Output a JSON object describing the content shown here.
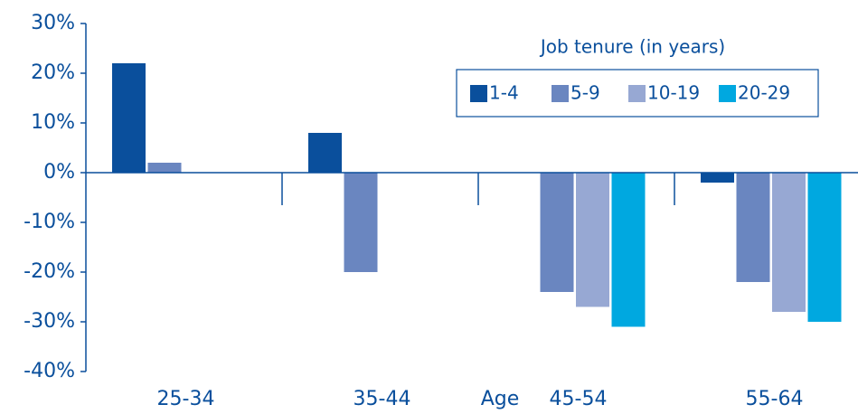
{
  "chart_data": {
    "type": "bar",
    "x_label": "Age",
    "categories": [
      "25-34",
      "35-44",
      "45-54",
      "55-64"
    ],
    "legend_title": "Job tenure (in years)",
    "legend_position": "upper right",
    "series": [
      {
        "name": "1-4",
        "color": "#0a4f9c",
        "values": [
          22,
          8,
          null,
          -2
        ]
      },
      {
        "name": "5-9",
        "color": "#6a86c0",
        "values": [
          2,
          -20,
          -24,
          -22
        ]
      },
      {
        "name": "10-19",
        "color": "#97a8d3",
        "values": [
          null,
          null,
          -27,
          -28
        ]
      },
      {
        "name": "20-29",
        "color": "#00a8e0",
        "values": [
          null,
          null,
          -31,
          -30
        ]
      }
    ],
    "ylim": [
      -40,
      30
    ],
    "yticks": [
      {
        "value": -40,
        "label": "-40%"
      },
      {
        "value": -30,
        "label": "-30%"
      },
      {
        "value": -20,
        "label": "-20%"
      },
      {
        "value": -10,
        "label": "-10%"
      },
      {
        "value": 0,
        "label": "0%"
      },
      {
        "value": 10,
        "label": "10%"
      },
      {
        "value": 20,
        "label": "20%"
      },
      {
        "value": 30,
        "label": "30%"
      }
    ]
  }
}
